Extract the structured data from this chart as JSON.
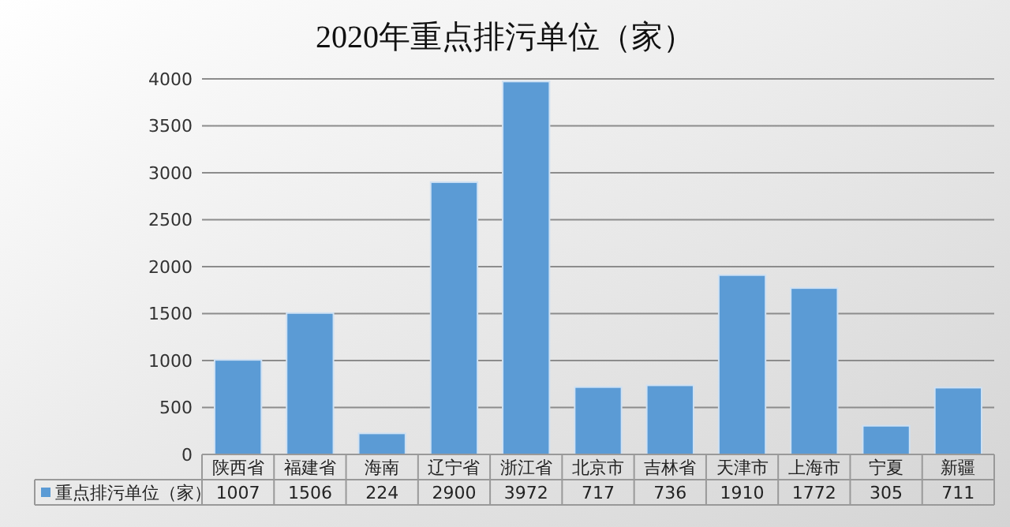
{
  "chart_data": {
    "type": "bar",
    "title": "2020年重点排污单位（家）",
    "categories": [
      "陕西省",
      "福建省",
      "海南",
      "辽宁省",
      "浙江省",
      "北京市",
      "吉林省",
      "天津市",
      "上海市",
      "宁夏",
      "新疆"
    ],
    "series": [
      {
        "name": "重点排污单位（家）",
        "color": "#5b9bd5",
        "values": [
          1007,
          1506,
          224,
          2900,
          3972,
          717,
          736,
          1910,
          1772,
          305,
          711
        ]
      }
    ],
    "ylim": [
      0,
      4000
    ],
    "yticks": [
      0,
      500,
      1000,
      1500,
      2000,
      2500,
      3000,
      3500,
      4000
    ],
    "grid": "y",
    "legend": "bottom",
    "data_labels": true
  }
}
